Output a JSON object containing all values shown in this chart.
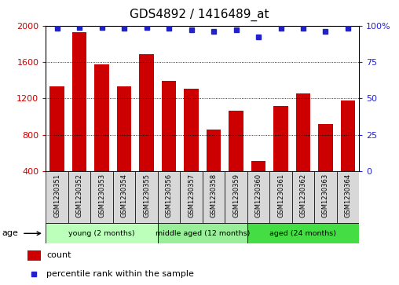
{
  "title": "GDS4892 / 1416489_at",
  "samples": [
    "GSM1230351",
    "GSM1230352",
    "GSM1230353",
    "GSM1230354",
    "GSM1230355",
    "GSM1230356",
    "GSM1230357",
    "GSM1230358",
    "GSM1230359",
    "GSM1230360",
    "GSM1230361",
    "GSM1230362",
    "GSM1230363",
    "GSM1230364"
  ],
  "counts": [
    1330,
    1930,
    1570,
    1330,
    1690,
    1390,
    1310,
    855,
    1060,
    510,
    1115,
    1255,
    920,
    1175
  ],
  "percentile_ranks": [
    98,
    99,
    99,
    98,
    99,
    98,
    97,
    96,
    97,
    92,
    98,
    98,
    96,
    98
  ],
  "bar_color": "#cc0000",
  "dot_color": "#2222cc",
  "ylim_left": [
    400,
    2000
  ],
  "ylim_right": [
    0,
    100
  ],
  "yticks_left": [
    400,
    800,
    1200,
    1600,
    2000
  ],
  "yticks_right": [
    0,
    25,
    50,
    75,
    100
  ],
  "groups": [
    {
      "label": "young (2 months)",
      "start": 0,
      "end": 5,
      "color": "#bbffbb"
    },
    {
      "label": "middle aged (12 months)",
      "start": 5,
      "end": 9,
      "color": "#99ee99"
    },
    {
      "label": "aged (24 months)",
      "start": 9,
      "end": 14,
      "color": "#44dd44"
    }
  ],
  "group_label": "age",
  "legend_count_label": "count",
  "legend_percentile_label": "percentile rank within the sample",
  "tick_label_color_left": "#cc0000",
  "tick_label_color_right": "#2222cc",
  "bar_width": 0.65,
  "sample_box_color": "#d8d8d8",
  "title_fontsize": 11,
  "tick_fontsize": 8
}
